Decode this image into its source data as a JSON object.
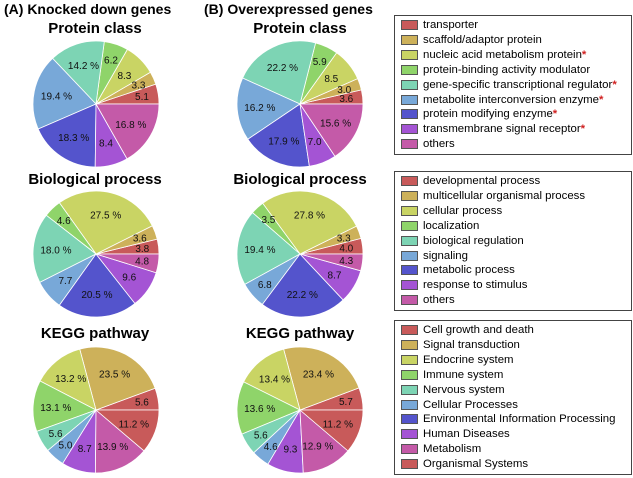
{
  "header_a": "(A) Knocked down genes",
  "header_b": "(B) Overexpressed genes",
  "colors": [
    "#c85a5a",
    "#cdb15a",
    "#c9d464",
    "#8fd46a",
    "#7dd4b4",
    "#78a8d8",
    "#5454cc",
    "#a454d4",
    "#c45aa8"
  ],
  "legends": [
    {
      "items": [
        {
          "label": "transporter",
          "star": ""
        },
        {
          "label": "scaffold/adaptor protein",
          "star": ""
        },
        {
          "label": "nucleic acid metabolism protein",
          "star": "*"
        },
        {
          "label": "protein-binding activity modulator",
          "star": ""
        },
        {
          "label": "gene-specific transcriptional regulator",
          "star": "*"
        },
        {
          "label": "metabolite interconversion enzyme",
          "star": "*"
        },
        {
          "label": "protein modifying enzyme",
          "star": "*"
        },
        {
          "label": "transmembrane signal receptor",
          "star": "*"
        },
        {
          "label": "others",
          "star": ""
        }
      ]
    },
    {
      "items": [
        {
          "label": "developmental process",
          "star": ""
        },
        {
          "label": "multicellular organismal process",
          "star": ""
        },
        {
          "label": "cellular process",
          "star": ""
        },
        {
          "label": "localization",
          "star": ""
        },
        {
          "label": "biological regulation",
          "star": ""
        },
        {
          "label": "signaling",
          "star": ""
        },
        {
          "label": "metabolic process",
          "star": ""
        },
        {
          "label": "response to stimulus",
          "star": ""
        },
        {
          "label": "others",
          "star": ""
        }
      ]
    },
    {
      "items": [
        {
          "label": "Cell growth and death",
          "star": ""
        },
        {
          "label": "Signal transduction",
          "star": ""
        },
        {
          "label": "Endocrine system",
          "star": ""
        },
        {
          "label": "Immune system",
          "star": ""
        },
        {
          "label": "Nervous system",
          "star": ""
        },
        {
          "label": "Cellular Processes",
          "star": ""
        },
        {
          "label": "Environmental Information Processing",
          "star": ""
        },
        {
          "label": "Human Diseases",
          "star": ""
        },
        {
          "label": "Metabolism",
          "star": ""
        },
        {
          "label": "Organismal Systems",
          "star": ""
        }
      ]
    }
  ],
  "chart_data": [
    {
      "type": "pie",
      "title": "Protein class",
      "group": "Knocked down genes",
      "slices": [
        {
          "value": 5.1,
          "label": "5.1"
        },
        {
          "value": 3.3,
          "label": "3.3"
        },
        {
          "value": 8.3,
          "label": "8.3"
        },
        {
          "value": 6.2,
          "label": "6.2"
        },
        {
          "value": 14.2,
          "label": "14.2 %"
        },
        {
          "value": 19.4,
          "label": "19.4 %"
        },
        {
          "value": 18.3,
          "label": "18.3 %"
        },
        {
          "value": 8.4,
          "label": "8.4"
        },
        {
          "value": 16.8,
          "label": "16.8 %"
        }
      ]
    },
    {
      "type": "pie",
      "title": "Protein class",
      "group": "Overexpressed genes",
      "slices": [
        {
          "value": 3.6,
          "label": "3.6"
        },
        {
          "value": 3.0,
          "label": "3.0"
        },
        {
          "value": 8.5,
          "label": "8.5"
        },
        {
          "value": 5.9,
          "label": "5.9"
        },
        {
          "value": 22.2,
          "label": "22.2 %"
        },
        {
          "value": 16.2,
          "label": "16.2 %"
        },
        {
          "value": 17.9,
          "label": "17.9 %"
        },
        {
          "value": 7.0,
          "label": "7.0"
        },
        {
          "value": 15.6,
          "label": "15.6 %"
        }
      ]
    },
    {
      "type": "pie",
      "title": "Biological process",
      "group": "Knocked down genes",
      "slices": [
        {
          "value": 3.8,
          "label": "3.8"
        },
        {
          "value": 3.6,
          "label": "3.6"
        },
        {
          "value": 27.5,
          "label": "27.5 %"
        },
        {
          "value": 4.6,
          "label": "4.6"
        },
        {
          "value": 18.0,
          "label": "18.0 %"
        },
        {
          "value": 7.7,
          "label": "7.7"
        },
        {
          "value": 20.5,
          "label": "20.5 %"
        },
        {
          "value": 9.6,
          "label": "9.6"
        },
        {
          "value": 4.8,
          "label": "4.8"
        }
      ]
    },
    {
      "type": "pie",
      "title": "Biological process",
      "group": "Overexpressed genes",
      "slices": [
        {
          "value": 4.0,
          "label": "4.0"
        },
        {
          "value": 3.3,
          "label": "3.3"
        },
        {
          "value": 27.8,
          "label": "27.8 %"
        },
        {
          "value": 3.5,
          "label": "3.5"
        },
        {
          "value": 19.4,
          "label": "19.4 %"
        },
        {
          "value": 6.8,
          "label": "6.8"
        },
        {
          "value": 22.2,
          "label": "22.2 %"
        },
        {
          "value": 8.7,
          "label": "8.7"
        },
        {
          "value": 4.3,
          "label": "4.3"
        }
      ]
    },
    {
      "type": "pie",
      "title": "KEGG pathway",
      "group": "Knocked down genes",
      "slices": [
        {
          "value": 5.6,
          "label": "5.6"
        },
        {
          "value": 23.5,
          "label": "23.5 %"
        },
        {
          "value": 13.2,
          "label": "13.2 %"
        },
        {
          "value": 13.1,
          "label": "13.1 %"
        },
        {
          "value": 5.6,
          "label": "5.6"
        },
        {
          "value": 5.0,
          "label": "5.0"
        },
        {
          "value": 0,
          "label": ""
        },
        {
          "value": 8.7,
          "label": "8.7"
        },
        {
          "value": 13.9,
          "label": "13.9 %"
        },
        {
          "value": 11.2,
          "label": "11.2 %"
        }
      ]
    },
    {
      "type": "pie",
      "title": "KEGG pathway",
      "group": "Overexpressed genes",
      "slices": [
        {
          "value": 5.7,
          "label": "5.7"
        },
        {
          "value": 23.4,
          "label": "23.4 %"
        },
        {
          "value": 13.4,
          "label": "13.4 %"
        },
        {
          "value": 13.6,
          "label": "13.6 %"
        },
        {
          "value": 5.6,
          "label": "5.6"
        },
        {
          "value": 4.6,
          "label": "4.6"
        },
        {
          "value": 0,
          "label": ""
        },
        {
          "value": 9.3,
          "label": "9.3"
        },
        {
          "value": 12.9,
          "label": "12.9 %"
        },
        {
          "value": 11.2,
          "label": "11.2 %"
        }
      ]
    }
  ]
}
